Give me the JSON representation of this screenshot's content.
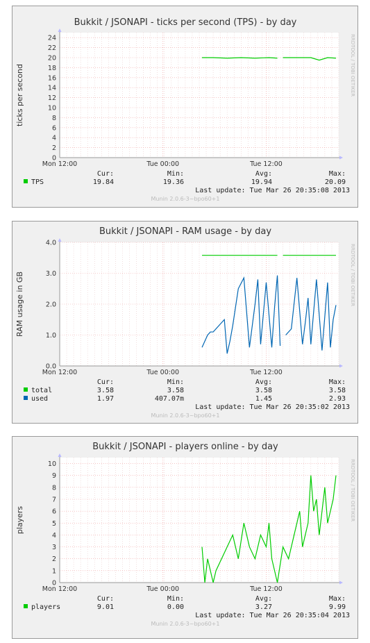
{
  "chart_data": [
    {
      "type": "line",
      "title": "Bukkit / JSONAPI - ticks per second (TPS) - by day",
      "ylabel": "ticks per second",
      "ylim": [
        0,
        25
      ],
      "yticks": [
        0,
        2,
        4,
        6,
        8,
        10,
        12,
        14,
        16,
        18,
        20,
        22,
        24
      ],
      "ytick_labels": [
        "0",
        "2",
        "4",
        "6",
        "8",
        "10",
        "12",
        "14",
        "16",
        "18",
        "20",
        "22",
        "24"
      ],
      "xticks": [
        "Mon 12:00",
        "Tue 00:00",
        "Tue 12:00"
      ],
      "grid": true,
      "side_text": "RRDTOOL / TOBI OETIKER",
      "footer": "Munin 2.0.6-3~bpo60+1",
      "stat_headers": [
        "Cur:",
        "Min:",
        "Avg:",
        "Max:"
      ],
      "series": [
        {
          "name": "TPS",
          "color": "#00cc00",
          "cur": "19.84",
          "min": "19.36",
          "avg": "19.94",
          "max": "20.09",
          "x": [
            0.51,
            0.55,
            0.6,
            0.65,
            0.7,
            0.75,
            0.78,
            0.8,
            0.85,
            0.9,
            0.93,
            0.96,
            0.99
          ],
          "values": [
            20.0,
            20.0,
            19.9,
            20.0,
            19.9,
            20.0,
            19.9,
            20.0,
            20.0,
            20.0,
            19.5,
            20.0,
            19.9
          ],
          "gaps": [
            0.79
          ]
        }
      ],
      "last_update": "Last update: Tue Mar 26 20:35:08 2013"
    },
    {
      "type": "line",
      "title": "Bukkit / JSONAPI - RAM usage - by day",
      "ylabel": "RAM usage in GB",
      "ylim": [
        0,
        4
      ],
      "yticks": [
        0,
        1,
        2,
        3,
        4
      ],
      "ytick_labels": [
        "0.0",
        "1.0",
        "2.0",
        "3.0",
        "4.0"
      ],
      "xticks": [
        "Mon 12:00",
        "Tue 00:00",
        "Tue 12:00"
      ],
      "grid": true,
      "side_text": "RRDTOOL / TOBI OETIKER",
      "footer": "Munin 2.0.6-3~bpo60+1",
      "stat_headers": [
        "Cur:",
        "Min:",
        "Avg:",
        "Max:"
      ],
      "series": [
        {
          "name": "total",
          "color": "#00cc00",
          "cur": "3.58",
          "min": "3.58",
          "avg": "3.58",
          "max": "3.58",
          "x": [
            0.51,
            0.78,
            0.8,
            0.99
          ],
          "values": [
            3.58,
            3.58,
            3.58,
            3.58
          ],
          "gaps": [
            0.79
          ]
        },
        {
          "name": "used",
          "color": "#0066b3",
          "cur": "1.97",
          "min": "407.07m",
          "avg": "1.45",
          "max": "2.93",
          "x": [
            0.51,
            0.52,
            0.53,
            0.54,
            0.55,
            0.57,
            0.59,
            0.6,
            0.61,
            0.62,
            0.64,
            0.66,
            0.68,
            0.7,
            0.71,
            0.72,
            0.74,
            0.76,
            0.77,
            0.78,
            0.79,
            0.81,
            0.83,
            0.85,
            0.87,
            0.88,
            0.89,
            0.9,
            0.92,
            0.94,
            0.95,
            0.96,
            0.97,
            0.98,
            0.99
          ],
          "values": [
            0.6,
            0.8,
            1.0,
            1.1,
            1.1,
            1.3,
            1.5,
            0.4,
            0.8,
            1.3,
            2.5,
            2.85,
            0.6,
            2.0,
            2.8,
            0.7,
            2.7,
            0.6,
            1.9,
            2.93,
            0.65,
            1.0,
            1.2,
            2.85,
            0.7,
            1.4,
            2.2,
            0.7,
            2.8,
            0.5,
            1.6,
            2.7,
            0.6,
            1.5,
            1.97
          ],
          "gaps": [
            0.8
          ]
        }
      ],
      "last_update": "Last update: Tue Mar 26 20:35:02 2013"
    },
    {
      "type": "line",
      "title": "Bukkit / JSONAPI - players online - by day",
      "ylabel": "players",
      "ylim": [
        0,
        10.5
      ],
      "yticks": [
        0,
        1,
        2,
        3,
        4,
        5,
        6,
        7,
        8,
        9,
        10
      ],
      "ytick_labels": [
        "0",
        "1",
        "2",
        "3",
        "4",
        "5",
        "6",
        "7",
        "8",
        "9",
        "10"
      ],
      "xticks": [
        "Mon 12:00",
        "Tue 00:00",
        "Tue 12:00"
      ],
      "grid": true,
      "side_text": "RRDTOOL / TOBI OETIKER",
      "footer": "Munin 2.0.6-3~bpo60+1",
      "stat_headers": [
        "Cur:",
        "Min:",
        "Avg:",
        "Max:"
      ],
      "series": [
        {
          "name": "players",
          "color": "#00cc00",
          "cur": "9.01",
          "min": "0.00",
          "avg": "3.27",
          "max": "9.99",
          "x": [
            0.51,
            0.52,
            0.53,
            0.54,
            0.55,
            0.56,
            0.58,
            0.6,
            0.62,
            0.64,
            0.66,
            0.68,
            0.7,
            0.72,
            0.74,
            0.75,
            0.76,
            0.78,
            0.8,
            0.82,
            0.84,
            0.86,
            0.87,
            0.89,
            0.9,
            0.91,
            0.92,
            0.93,
            0.95,
            0.96,
            0.97,
            0.98,
            0.99
          ],
          "values": [
            3,
            0,
            2,
            1,
            0,
            1,
            2,
            3,
            4,
            2,
            5,
            3,
            2,
            4,
            3,
            5,
            2,
            0,
            3,
            2,
            4,
            6,
            3,
            5,
            9,
            6,
            7,
            4,
            8,
            5,
            6,
            7,
            9
          ],
          "gaps": []
        }
      ],
      "last_update": "Last update: Tue Mar 26 20:35:04 2013"
    }
  ]
}
